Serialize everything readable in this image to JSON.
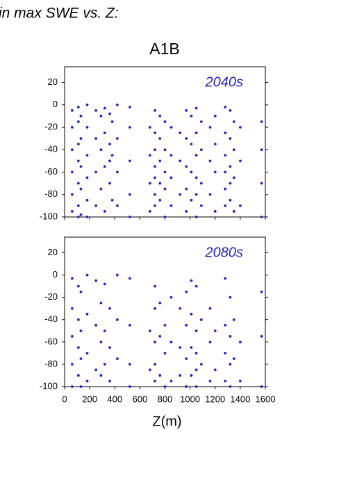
{
  "header": "in max SWE vs. Z:",
  "chart_data": [
    {
      "type": "scatter",
      "title": "A1B",
      "label": "2040s",
      "color": "#2323c0",
      "xlim": [
        0,
        1600
      ],
      "ylim": [
        -100,
        34
      ],
      "show_xtick_labels": false,
      "xticks": [
        0,
        200,
        400,
        600,
        800,
        1000,
        1200,
        1400,
        1600
      ],
      "yticks": [
        20,
        0,
        -20,
        -40,
        -60,
        -80,
        -100
      ],
      "x": [
        60,
        60,
        60,
        60,
        60,
        60,
        110,
        110,
        110,
        110,
        110,
        110,
        110,
        130,
        130,
        130,
        130,
        130,
        180,
        180,
        180,
        180,
        180,
        180,
        250,
        250,
        250,
        250,
        290,
        290,
        290,
        320,
        320,
        320,
        320,
        360,
        360,
        360,
        360,
        380,
        380,
        380,
        420,
        420,
        420,
        420,
        520,
        520,
        520,
        520,
        520,
        680,
        680,
        680,
        680,
        720,
        720,
        720,
        720,
        720,
        720,
        720,
        760,
        760,
        760,
        760,
        760,
        800,
        800,
        800,
        800,
        800,
        850,
        850,
        850,
        850,
        920,
        920,
        920,
        970,
        970,
        970,
        970,
        970,
        1010,
        1010,
        1010,
        1010,
        1050,
        1050,
        1050,
        1050,
        1050,
        1050,
        1090,
        1090,
        1090,
        1090,
        1160,
        1160,
        1160,
        1200,
        1200,
        1200,
        1200,
        1280,
        1280,
        1280,
        1280,
        1280,
        1280,
        1320,
        1320,
        1320,
        1320,
        1320,
        1350,
        1350,
        1350,
        1350,
        1400,
        1400,
        1400,
        1570,
        1570,
        1570,
        1570
      ],
      "y": [
        -5,
        -20,
        -40,
        -60,
        -80,
        -95,
        -2,
        -15,
        -35,
        -50,
        -70,
        -90,
        -100,
        -10,
        -30,
        -55,
        -75,
        -98,
        0,
        -20,
        -45,
        -65,
        -85,
        -100,
        -5,
        -30,
        -60,
        -90,
        -10,
        -40,
        -75,
        -3,
        -25,
        -55,
        -95,
        -8,
        -35,
        -50,
        -70,
        -15,
        -45,
        -85,
        0,
        -30,
        -60,
        -90,
        -2,
        -20,
        -50,
        -80,
        -100,
        -20,
        -45,
        -70,
        -95,
        -5,
        -25,
        -40,
        -55,
        -65,
        -80,
        -90,
        -10,
        -30,
        -50,
        -70,
        -85,
        -15,
        -40,
        -60,
        -75,
        -100,
        -20,
        -45,
        -65,
        -90,
        -25,
        -50,
        -80,
        -5,
        -30,
        -55,
        -75,
        -95,
        -10,
        -35,
        -60,
        -85,
        -3,
        -25,
        -45,
        -65,
        -80,
        -100,
        -15,
        -40,
        -70,
        -90,
        -20,
        -50,
        -80,
        -10,
        -35,
        -60,
        -95,
        -2,
        -25,
        -45,
        -60,
        -75,
        -90,
        -5,
        -30,
        -55,
        -70,
        -85,
        -15,
        -40,
        -65,
        -95,
        -20,
        -50,
        -90,
        -15,
        -40,
        -70,
        -100
      ]
    },
    {
      "type": "scatter",
      "label": "2080s",
      "color": "#2323c0",
      "xlabel": "Z(m)",
      "xlim": [
        0,
        1600
      ],
      "ylim": [
        -100,
        34
      ],
      "show_xtick_labels": true,
      "xticks": [
        0,
        200,
        400,
        600,
        800,
        1000,
        1200,
        1400,
        1600
      ],
      "yticks": [
        20,
        0,
        -20,
        -40,
        -60,
        -80,
        -100
      ],
      "x": [
        60,
        60,
        60,
        60,
        60,
        110,
        110,
        110,
        110,
        130,
        130,
        130,
        130,
        180,
        180,
        180,
        180,
        250,
        250,
        250,
        290,
        290,
        290,
        320,
        320,
        320,
        360,
        360,
        360,
        420,
        420,
        420,
        520,
        520,
        520,
        520,
        680,
        680,
        720,
        720,
        720,
        720,
        720,
        760,
        760,
        760,
        800,
        800,
        800,
        850,
        850,
        850,
        920,
        920,
        920,
        970,
        970,
        970,
        970,
        1010,
        1010,
        1010,
        1010,
        1050,
        1050,
        1050,
        1050,
        1050,
        1090,
        1090,
        1160,
        1160,
        1160,
        1200,
        1200,
        1280,
        1280,
        1280,
        1280,
        1320,
        1320,
        1320,
        1320,
        1350,
        1350,
        1400,
        1400,
        1570,
        1570,
        1570
      ],
      "y": [
        -3,
        -30,
        -55,
        -80,
        -100,
        -10,
        -40,
        -65,
        -90,
        -15,
        -50,
        -75,
        -100,
        0,
        -35,
        -70,
        -95,
        -5,
        -45,
        -85,
        -25,
        -60,
        -90,
        -8,
        -50,
        -80,
        -30,
        -65,
        -95,
        0,
        -40,
        -75,
        -3,
        -45,
        -80,
        -100,
        -50,
        -85,
        -10,
        -30,
        -60,
        -80,
        -95,
        -25,
        -55,
        -90,
        -45,
        -70,
        -100,
        -20,
        -60,
        -95,
        -30,
        -65,
        -90,
        -15,
        -45,
        -75,
        -100,
        -5,
        -35,
        -65,
        -90,
        -10,
        -50,
        -70,
        -85,
        -100,
        -40,
        -80,
        -30,
        -60,
        -95,
        -50,
        -85,
        -3,
        -45,
        -70,
        -95,
        -20,
        -55,
        -80,
        -100,
        -40,
        -75,
        -60,
        -95,
        -15,
        -55,
        -100
      ]
    }
  ]
}
